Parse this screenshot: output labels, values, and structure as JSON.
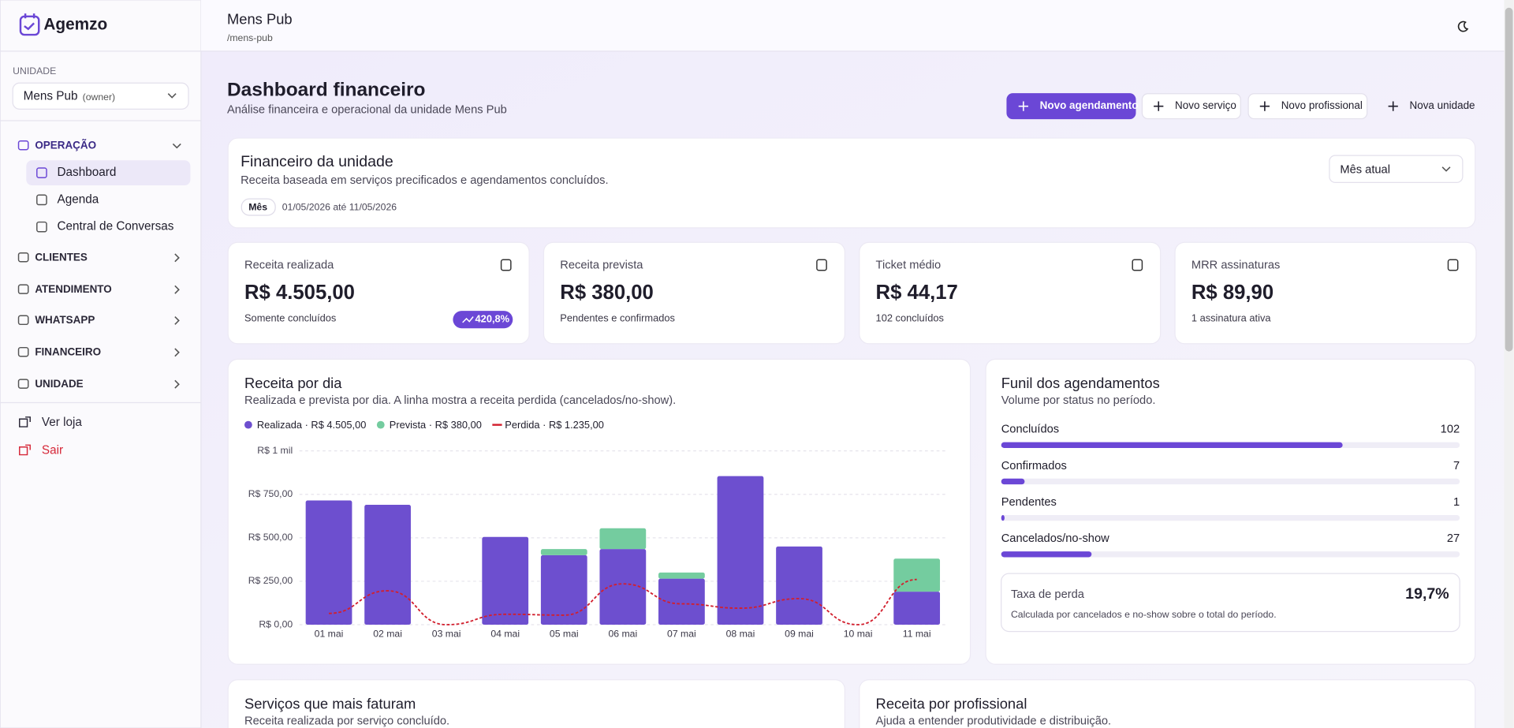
{
  "sidebar": {
    "brand": "Agemzo",
    "unit_label": "UNIDADE",
    "unit_name": "Mens Pub",
    "unit_role": "(owner)",
    "nav": [
      {
        "label": "OPERAÇÃO",
        "items": [
          "Dashboard",
          "Agenda",
          "Central de Conversas"
        ]
      },
      {
        "label": "CLIENTES"
      },
      {
        "label": "ATENDIMENTO"
      },
      {
        "label": "WHATSAPP"
      },
      {
        "label": "FINANCEIRO"
      },
      {
        "label": "UNIDADE"
      }
    ],
    "links": [
      "Ver loja",
      "Sair"
    ]
  },
  "header": {
    "title": "Mens Pub",
    "slug": "/mens-pub"
  },
  "page": {
    "title": "Dashboard financeiro",
    "subtitle": "Análise financeira e operacional da unidade Mens Pub",
    "actions": [
      "Novo agendamento",
      "Novo serviço",
      "Novo profissional",
      "Nova unidade"
    ]
  },
  "finance_card": {
    "title": "Financeiro da unidade",
    "subtitle": "Receita baseada em serviços precificados e agendamentos concluídos.",
    "period_badge": "Mês",
    "period_range": "01/05/2026 até 11/05/2026",
    "period_select": "Mês atual"
  },
  "stats": [
    {
      "label": "Receita realizada",
      "value": "R$ 4.505,00",
      "note": "Somente concluídos",
      "badge": "420,8%"
    },
    {
      "label": "Receita prevista",
      "value": "R$ 380,00",
      "note": "Pendentes e confirmados"
    },
    {
      "label": "Ticket médio",
      "value": "R$ 44,17",
      "note": "102 concluídos"
    },
    {
      "label": "MRR assinaturas",
      "value": "R$ 89,90",
      "note": "1 assinatura ativa"
    }
  ],
  "chart_data": {
    "type": "bar",
    "stacked": true,
    "title": "Receita por dia",
    "subtitle": "Realizada e prevista por dia. A linha mostra a receita perdida (cancelados/no-show).",
    "categories": [
      "01 mai",
      "02 mai",
      "03 mai",
      "04 mai",
      "05 mai",
      "06 mai",
      "07 mai",
      "08 mai",
      "09 mai",
      "10 mai",
      "11 mai"
    ],
    "series": [
      {
        "name": "Realizada · R$ 4.505,00",
        "color": "#6d4fcf",
        "values": [
          715,
          690,
          0,
          505,
          400,
          435,
          265,
          855,
          450,
          0,
          190
        ]
      },
      {
        "name": "Prevista · R$ 380,00",
        "color": "#74cc9f",
        "values": [
          0,
          0,
          0,
          0,
          35,
          120,
          35,
          0,
          0,
          0,
          190
        ]
      },
      {
        "name": "Perdida · R$ 1.235,00",
        "type": "line",
        "color": "#d21f2d",
        "values": [
          65,
          195,
          0,
          60,
          55,
          235,
          120,
          95,
          150,
          0,
          260
        ]
      }
    ],
    "ylim": [
      0,
      1000
    ],
    "yticks": [
      {
        "value": 0,
        "label": "R$ 0,00"
      },
      {
        "value": 250,
        "label": "R$ 250,00"
      },
      {
        "value": 500,
        "label": "R$ 500,00"
      },
      {
        "value": 750,
        "label": "R$ 750,00"
      },
      {
        "value": 1000,
        "label": "R$ 1 mil"
      }
    ],
    "grid": true
  },
  "funnel": {
    "title": "Funil dos agendamentos",
    "subtitle": "Volume por status no período.",
    "rows": [
      {
        "label": "Concluídos",
        "value": 102
      },
      {
        "label": "Confirmados",
        "value": 7
      },
      {
        "label": "Pendentes",
        "value": 1
      },
      {
        "label": "Cancelados/no-show",
        "value": 27
      }
    ],
    "loss": {
      "label": "Taxa de perda",
      "value": "19,7%",
      "note": "Calculada por cancelados e no-show sobre o total do período."
    }
  },
  "bottom_cards": [
    {
      "title": "Serviços que mais faturam",
      "subtitle": "Receita realizada por serviço concluído."
    },
    {
      "title": "Receita por profissional",
      "subtitle": "Ajuda a entender produtividade e distribuição."
    }
  ]
}
